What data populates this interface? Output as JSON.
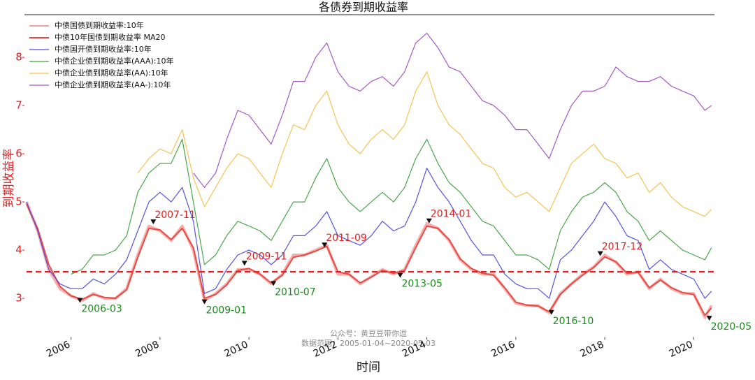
{
  "chart_data": {
    "type": "line",
    "title": "各债券到期收益率",
    "x_label": "时间",
    "y_label": "到期收益率",
    "xlim": [
      2005,
      2020.45
    ],
    "ylim": [
      2.4,
      8.9
    ],
    "xticks": [
      2006,
      2008,
      2010,
      2012,
      2014,
      2016,
      2018,
      2020
    ],
    "yticks": [
      3,
      4,
      5,
      6,
      7,
      8
    ],
    "legend": "upper left",
    "reference_line": 3.55,
    "reference_color": "#e02020",
    "x": [
      2005,
      2005.25,
      2005.5,
      2005.75,
      2006,
      2006.25,
      2006.5,
      2006.75,
      2007,
      2007.25,
      2007.5,
      2007.75,
      2008,
      2008.25,
      2008.5,
      2008.75,
      2009,
      2009.25,
      2009.5,
      2009.75,
      2010,
      2010.25,
      2010.5,
      2010.75,
      2011,
      2011.25,
      2011.5,
      2011.75,
      2012,
      2012.25,
      2012.5,
      2012.75,
      2013,
      2013.25,
      2013.5,
      2013.75,
      2014,
      2014.25,
      2014.5,
      2014.75,
      2015,
      2015.25,
      2015.5,
      2015.75,
      2016,
      2016.25,
      2016.5,
      2016.75,
      2017,
      2017.25,
      2017.5,
      2017.75,
      2018,
      2018.25,
      2018.5,
      2018.75,
      2019,
      2019.25,
      2019.5,
      2019.75,
      2020,
      2020.25,
      2020.4
    ],
    "series": [
      {
        "name": "中债国债到期收益率:10年",
        "color": "#f4a0a0",
        "width": 4,
        "values": [
          5.0,
          4.4,
          3.6,
          3.2,
          3.05,
          2.95,
          3.1,
          3.0,
          3.0,
          3.2,
          3.9,
          4.5,
          4.4,
          4.2,
          4.5,
          4.0,
          2.95,
          3.1,
          3.3,
          3.6,
          3.6,
          3.5,
          3.3,
          3.5,
          3.9,
          3.9,
          4.0,
          4.1,
          3.5,
          3.5,
          3.3,
          3.45,
          3.6,
          3.5,
          3.6,
          4.1,
          4.55,
          4.45,
          4.2,
          3.8,
          3.6,
          3.5,
          3.5,
          3.2,
          2.9,
          2.85,
          2.85,
          2.7,
          3.1,
          3.3,
          3.5,
          3.65,
          3.9,
          3.75,
          3.5,
          3.55,
          3.2,
          3.4,
          3.2,
          3.1,
          3.1,
          2.6,
          2.85
        ]
      },
      {
        "name": "中债10年国债到期收益率 MA20",
        "color": "#e8453c",
        "width": 2,
        "values": [
          4.95,
          4.45,
          3.7,
          3.25,
          3.05,
          2.98,
          3.08,
          3.02,
          3.0,
          3.18,
          3.85,
          4.45,
          4.42,
          4.22,
          4.45,
          4.05,
          3.0,
          3.08,
          3.28,
          3.58,
          3.62,
          3.5,
          3.32,
          3.48,
          3.85,
          3.9,
          3.98,
          4.08,
          3.55,
          3.5,
          3.32,
          3.44,
          3.58,
          3.52,
          3.58,
          4.05,
          4.5,
          4.45,
          4.22,
          3.82,
          3.62,
          3.52,
          3.48,
          3.22,
          2.92,
          2.86,
          2.84,
          2.72,
          3.08,
          3.3,
          3.48,
          3.64,
          3.86,
          3.76,
          3.52,
          3.54,
          3.22,
          3.38,
          3.22,
          3.12,
          3.08,
          2.65,
          2.8
        ]
      },
      {
        "name": "中债国开债到期收益率:10年",
        "color": "#4a4ae0",
        "width": 1.2,
        "values": [
          5.0,
          4.4,
          3.6,
          3.3,
          3.2,
          3.2,
          3.4,
          3.3,
          3.5,
          3.8,
          4.4,
          5.0,
          5.2,
          5.0,
          5.3,
          4.6,
          3.1,
          3.2,
          3.6,
          3.9,
          4.0,
          3.9,
          3.7,
          3.9,
          4.3,
          4.3,
          4.5,
          4.8,
          4.3,
          4.2,
          4.1,
          4.3,
          4.6,
          4.4,
          4.5,
          5.0,
          5.7,
          5.3,
          5.0,
          4.6,
          4.2,
          3.9,
          3.9,
          3.5,
          3.3,
          3.2,
          3.2,
          3.0,
          3.8,
          4.0,
          4.3,
          4.6,
          5.0,
          4.7,
          4.3,
          4.2,
          3.6,
          3.8,
          3.6,
          3.5,
          3.4,
          3.0,
          3.15
        ]
      },
      {
        "name": "中债企业债到期收益率(AAA):10年",
        "color": "#3fa23f",
        "width": 1.2,
        "values": [
          null,
          null,
          null,
          null,
          3.5,
          3.6,
          3.9,
          3.9,
          4.0,
          4.3,
          5.2,
          5.6,
          5.8,
          5.8,
          6.3,
          5.0,
          3.7,
          3.9,
          4.3,
          4.6,
          4.5,
          4.4,
          4.2,
          4.6,
          5.0,
          5.0,
          5.5,
          5.9,
          5.3,
          5.0,
          4.8,
          5.0,
          5.2,
          5.0,
          5.3,
          5.9,
          6.3,
          5.8,
          5.4,
          5.2,
          4.9,
          4.6,
          4.5,
          4.2,
          3.9,
          3.9,
          3.8,
          3.6,
          4.4,
          4.8,
          5.1,
          5.2,
          5.4,
          5.2,
          4.8,
          4.6,
          4.2,
          4.4,
          4.2,
          4.0,
          3.9,
          3.8,
          4.05
        ]
      },
      {
        "name": "中债企业债到期收益率(AA):10年",
        "color": "#f5c04a",
        "width": 1.2,
        "values": [
          null,
          null,
          null,
          null,
          null,
          null,
          null,
          null,
          null,
          null,
          5.6,
          5.9,
          6.1,
          6.0,
          6.5,
          5.5,
          4.9,
          5.3,
          5.7,
          6.0,
          5.9,
          5.6,
          5.3,
          6.0,
          6.6,
          6.5,
          7.0,
          7.3,
          6.6,
          6.2,
          6.0,
          6.3,
          6.5,
          6.3,
          6.6,
          7.3,
          7.7,
          7.0,
          6.6,
          6.4,
          6.1,
          5.8,
          5.7,
          5.3,
          5.1,
          5.2,
          5.0,
          4.8,
          5.3,
          5.8,
          6.0,
          6.2,
          5.9,
          5.8,
          5.5,
          5.6,
          5.2,
          5.4,
          5.1,
          4.9,
          4.8,
          4.7,
          4.85
        ]
      },
      {
        "name": "中债企业债到期收益率(AA-):10年",
        "color": "#a050c0",
        "width": 1.2,
        "values": [
          null,
          null,
          null,
          null,
          null,
          null,
          null,
          null,
          null,
          null,
          null,
          null,
          null,
          null,
          null,
          5.6,
          5.3,
          5.6,
          6.3,
          6.9,
          6.8,
          6.5,
          6.2,
          6.8,
          7.5,
          7.5,
          8.0,
          8.3,
          7.7,
          7.4,
          7.3,
          7.5,
          7.6,
          7.4,
          7.7,
          8.3,
          8.5,
          8.2,
          7.8,
          7.7,
          7.4,
          7.1,
          7.0,
          6.8,
          6.5,
          6.5,
          6.2,
          5.9,
          6.5,
          7.0,
          7.3,
          7.3,
          7.4,
          7.8,
          7.6,
          7.5,
          7.5,
          7.6,
          7.4,
          7.3,
          7.2,
          6.9,
          7.0
        ]
      }
    ],
    "annotations": [
      {
        "label": "2006-03",
        "x": 2006.2,
        "y": 2.95,
        "color": "#1a8a1a",
        "side": "below"
      },
      {
        "label": "2007-11",
        "x": 2007.85,
        "y": 4.58,
        "color": "#e02020",
        "side": "above"
      },
      {
        "label": "2009-01",
        "x": 2009.0,
        "y": 2.92,
        "color": "#1a8a1a",
        "side": "below"
      },
      {
        "label": "2009-11",
        "x": 2009.9,
        "y": 3.72,
        "color": "#e02020",
        "side": "above"
      },
      {
        "label": "2010-07",
        "x": 2010.55,
        "y": 3.3,
        "color": "#1a8a1a",
        "side": "below"
      },
      {
        "label": "2011-09",
        "x": 2011.7,
        "y": 4.1,
        "color": "#e02020",
        "side": "above"
      },
      {
        "label": "2013-05",
        "x": 2013.4,
        "y": 3.47,
        "color": "#1a8a1a",
        "side": "below"
      },
      {
        "label": "2014-01",
        "x": 2014.05,
        "y": 4.6,
        "color": "#e02020",
        "side": "above"
      },
      {
        "label": "2016-10",
        "x": 2016.8,
        "y": 2.7,
        "color": "#1a8a1a",
        "side": "below"
      },
      {
        "label": "2017-12",
        "x": 2017.9,
        "y": 3.92,
        "color": "#e02020",
        "side": "above"
      },
      {
        "label": "2020-05",
        "x": 2020.35,
        "y": 2.58,
        "color": "#1a8a1a",
        "side": "below"
      }
    ],
    "watermark": [
      "公众号：黄豆豆带你逗",
      "数据范围：2005-01-04~2020-05-03"
    ]
  }
}
